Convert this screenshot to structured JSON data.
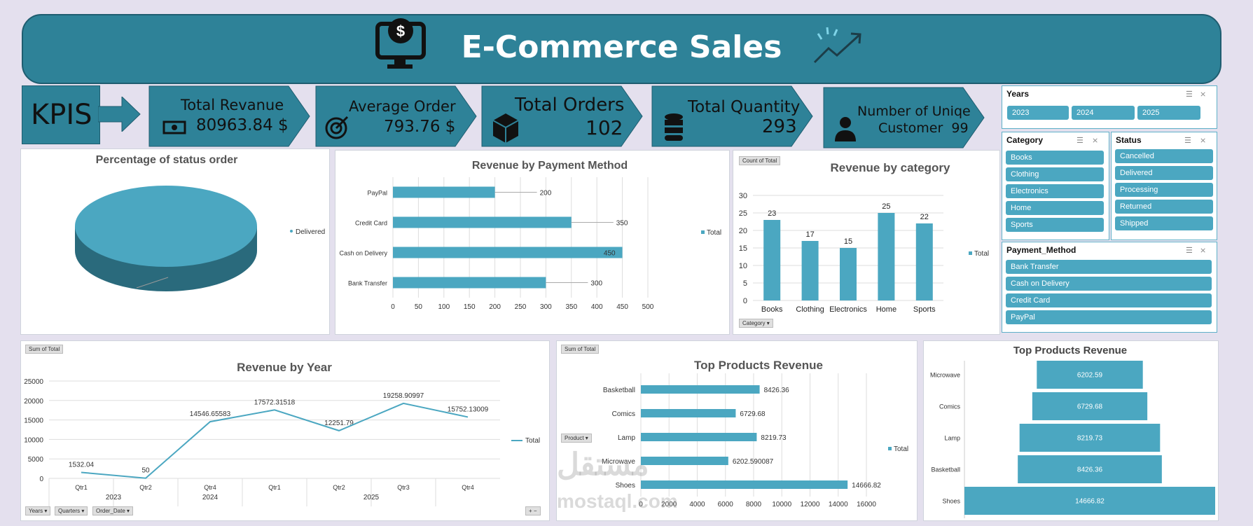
{
  "header": {
    "title": "E-Commerce Sales"
  },
  "kpis": {
    "label": "KPIS",
    "total_revenue": {
      "title": "Total Revanue",
      "value": "80963.84 $"
    },
    "average_order": {
      "title": "Average Order",
      "value": "793.76 $"
    },
    "total_orders": {
      "title": "Total Orders",
      "value": "102"
    },
    "total_quantity": {
      "title": "Total Quantity",
      "value": "293"
    },
    "unique_customers": {
      "title": "Number of Uniqe",
      "value": "Customer  99"
    }
  },
  "slicers": {
    "years": {
      "title": "Years",
      "items": [
        "2023",
        "2024",
        "2025"
      ]
    },
    "category": {
      "title": "Category",
      "items": [
        "Books",
        "Clothing",
        "Electronics",
        "Home",
        "Sports"
      ]
    },
    "status": {
      "title": "Status",
      "items": [
        "Cancelled",
        "Delivered",
        "Processing",
        "Returned",
        "Shipped"
      ]
    },
    "payment": {
      "title": "Payment_Method",
      "items": [
        "Bank Transfer",
        "Cash on Delivery",
        "Credit Card",
        "PayPal"
      ]
    }
  },
  "buttons": {
    "count_of_total": "Count of Total",
    "category_filter": "Category",
    "sum_of_total_1": "Sum of Total",
    "sum_of_total_2": "Sum of Total",
    "product_filter": "Product",
    "years_filter": "Years",
    "quarters_filter": "Quarters",
    "order_date_filter": "Order_Date"
  },
  "watermark": {
    "arabic": "مستقل",
    "latin": "mostaql.com"
  },
  "colors": {
    "accent": "#4ba7c1",
    "banner": "#2e8298",
    "kpi": "#2e8298"
  },
  "chart_data": [
    {
      "type": "pie",
      "title": "Percentage of status order",
      "categories": [
        "Delivered"
      ],
      "values": [
        100
      ],
      "legend": "right"
    },
    {
      "type": "bar",
      "orientation": "horizontal",
      "title": "Revenue by Payment Method",
      "categories": [
        "Bank Transfer",
        "Cash on Delivery",
        "Credit Card",
        "PayPal"
      ],
      "values": [
        300,
        450,
        350,
        200
      ],
      "series_name": "Total",
      "xlim": [
        0,
        500
      ],
      "ticks": [
        0,
        50,
        100,
        150,
        200,
        250,
        300,
        350,
        400,
        450,
        500
      ],
      "legend": "right"
    },
    {
      "type": "bar",
      "title": "Revenue by category",
      "categories": [
        "Books",
        "Clothing",
        "Electronics",
        "Home",
        "Sports"
      ],
      "values": [
        23,
        17,
        15,
        25,
        22
      ],
      "series_name": "Total",
      "ylim": [
        0,
        30
      ],
      "ticks": [
        0,
        5,
        10,
        15,
        20,
        25,
        30
      ],
      "legend": "right"
    },
    {
      "type": "line",
      "title": "Revenue by Year",
      "categories": [
        "Qtr1",
        "Qtr2",
        "Qtr4",
        "Qtr1",
        "Qtr2",
        "Qtr3",
        "Qtr4"
      ],
      "years": [
        {
          "label": "2023",
          "span": 2
        },
        {
          "label": "2024",
          "span": 1
        },
        {
          "label": "2025",
          "span": 4
        }
      ],
      "values": [
        1532.04,
        50,
        14546.65583,
        17572.31518,
        12251.79,
        19258.90997,
        15752.13009
      ],
      "labels": [
        "1532.04",
        "50",
        "14546.65583",
        "17572.31518",
        "12251.79",
        "19258.90997",
        "15752.13009"
      ],
      "series_name": "Total",
      "ylim": [
        0,
        25000
      ],
      "ticks": [
        0,
        5000,
        10000,
        15000,
        20000,
        25000
      ],
      "legend": "right"
    },
    {
      "type": "bar",
      "orientation": "horizontal",
      "title": "Top Products Revenue",
      "categories": [
        "Basketball",
        "Comics",
        "Lamp",
        "Microwave",
        "Shoes"
      ],
      "values": [
        8426.36,
        6729.68,
        8219.73,
        6202.590087,
        14666.82
      ],
      "labels": [
        "8426.36",
        "6729.68",
        "8219.73",
        "6202.590087",
        "14666.82"
      ],
      "series_name": "Total",
      "xlim": [
        0,
        16000
      ],
      "ticks": [
        0,
        2000,
        4000,
        6000,
        8000,
        10000,
        12000,
        14000,
        16000
      ],
      "legend": "right"
    },
    {
      "type": "bar",
      "subtype": "funnel",
      "title": "Top Products Revenue",
      "categories": [
        "Microwave",
        "Comics",
        "Lamp",
        "Basketball",
        "Shoes"
      ],
      "values": [
        6202.59,
        6729.68,
        8219.73,
        8426.36,
        14666.82
      ],
      "labels": [
        "6202.59",
        "6729.68",
        "8219.73",
        "8426.36",
        "14666.82"
      ]
    }
  ]
}
